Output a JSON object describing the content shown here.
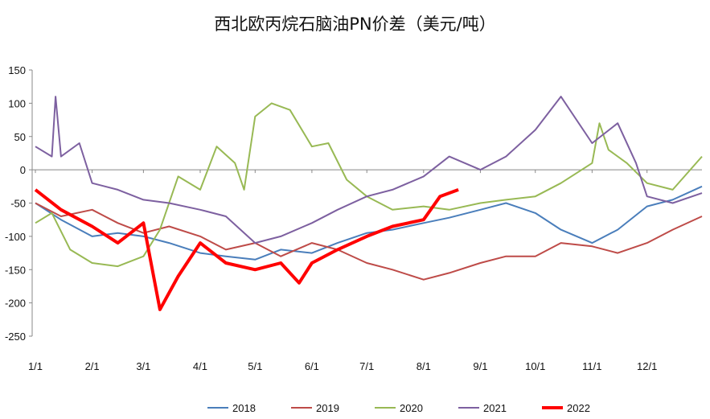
{
  "chart_data": {
    "type": "line",
    "title": "西北欧丙烷石脑油PN价差（美元/吨）",
    "xlabel": "",
    "ylabel": "",
    "ylim": [
      -250,
      150
    ],
    "yticks": [
      150,
      100,
      50,
      0,
      -50,
      -100,
      -150,
      -200,
      -250
    ],
    "xticks": [
      "1/1",
      "2/1",
      "3/1",
      "4/1",
      "5/1",
      "6/1",
      "7/1",
      "8/1",
      "9/1",
      "10/1",
      "11/1",
      "12/1"
    ],
    "grid": false,
    "legend": "bottom",
    "series": [
      {
        "name": "2018",
        "color": "#4a7ebb",
        "width": 2,
        "points": [
          [
            "01-01",
            -50
          ],
          [
            "01-15",
            -75
          ],
          [
            "02-01",
            -100
          ],
          [
            "02-15",
            -95
          ],
          [
            "03-01",
            -100
          ],
          [
            "03-15",
            -110
          ],
          [
            "04-01",
            -125
          ],
          [
            "04-15",
            -130
          ],
          [
            "05-01",
            -135
          ],
          [
            "05-15",
            -120
          ],
          [
            "06-01",
            -125
          ],
          [
            "06-15",
            -110
          ],
          [
            "07-01",
            -95
          ],
          [
            "07-15",
            -90
          ],
          [
            "08-01",
            -80
          ],
          [
            "08-15",
            -72
          ],
          [
            "09-01",
            -60
          ],
          [
            "09-15",
            -50
          ],
          [
            "10-01",
            -65
          ],
          [
            "10-15",
            -90
          ],
          [
            "11-01",
            -110
          ],
          [
            "11-15",
            -90
          ],
          [
            "12-01",
            -55
          ],
          [
            "12-15",
            -45
          ],
          [
            "12-31",
            -25
          ]
        ]
      },
      {
        "name": "2019",
        "color": "#be4b48",
        "width": 2,
        "points": [
          [
            "01-01",
            -50
          ],
          [
            "01-15",
            -70
          ],
          [
            "02-01",
            -60
          ],
          [
            "02-15",
            -80
          ],
          [
            "03-01",
            -95
          ],
          [
            "03-15",
            -85
          ],
          [
            "04-01",
            -100
          ],
          [
            "04-15",
            -120
          ],
          [
            "05-01",
            -110
          ],
          [
            "05-15",
            -130
          ],
          [
            "06-01",
            -110
          ],
          [
            "06-15",
            -120
          ],
          [
            "07-01",
            -140
          ],
          [
            "07-15",
            -150
          ],
          [
            "08-01",
            -165
          ],
          [
            "08-15",
            -155
          ],
          [
            "09-01",
            -140
          ],
          [
            "09-15",
            -130
          ],
          [
            "10-01",
            -130
          ],
          [
            "10-15",
            -110
          ],
          [
            "11-01",
            -115
          ],
          [
            "11-15",
            -125
          ],
          [
            "12-01",
            -110
          ],
          [
            "12-15",
            -90
          ],
          [
            "12-31",
            -70
          ]
        ]
      },
      {
        "name": "2020",
        "color": "#98b954",
        "width": 2,
        "points": [
          [
            "01-01",
            -80
          ],
          [
            "01-10",
            -65
          ],
          [
            "01-20",
            -120
          ],
          [
            "02-01",
            -140
          ],
          [
            "02-15",
            -145
          ],
          [
            "03-01",
            -130
          ],
          [
            "03-10",
            -90
          ],
          [
            "03-20",
            -10
          ],
          [
            "04-01",
            -30
          ],
          [
            "04-10",
            35
          ],
          [
            "04-20",
            10
          ],
          [
            "04-25",
            -30
          ],
          [
            "05-01",
            80
          ],
          [
            "05-10",
            100
          ],
          [
            "05-20",
            90
          ],
          [
            "06-01",
            35
          ],
          [
            "06-10",
            40
          ],
          [
            "06-20",
            -15
          ],
          [
            "07-01",
            -40
          ],
          [
            "07-15",
            -60
          ],
          [
            "08-01",
            -55
          ],
          [
            "08-15",
            -60
          ],
          [
            "09-01",
            -50
          ],
          [
            "09-15",
            -45
          ],
          [
            "10-01",
            -40
          ],
          [
            "10-15",
            -20
          ],
          [
            "11-01",
            10
          ],
          [
            "11-05",
            70
          ],
          [
            "11-10",
            30
          ],
          [
            "11-20",
            10
          ],
          [
            "12-01",
            -20
          ],
          [
            "12-15",
            -30
          ],
          [
            "12-31",
            20
          ]
        ]
      },
      {
        "name": "2021",
        "color": "#7d60a0",
        "width": 2,
        "points": [
          [
            "01-01",
            35
          ],
          [
            "01-10",
            20
          ],
          [
            "01-12",
            110
          ],
          [
            "01-15",
            20
          ],
          [
            "01-25",
            40
          ],
          [
            "02-01",
            -20
          ],
          [
            "02-15",
            -30
          ],
          [
            "03-01",
            -45
          ],
          [
            "03-15",
            -50
          ],
          [
            "04-01",
            -60
          ],
          [
            "04-15",
            -70
          ],
          [
            "05-01",
            -110
          ],
          [
            "05-15",
            -100
          ],
          [
            "06-01",
            -80
          ],
          [
            "06-15",
            -60
          ],
          [
            "07-01",
            -40
          ],
          [
            "07-15",
            -30
          ],
          [
            "08-01",
            -10
          ],
          [
            "08-15",
            20
          ],
          [
            "09-01",
            0
          ],
          [
            "09-15",
            20
          ],
          [
            "10-01",
            60
          ],
          [
            "10-15",
            110
          ],
          [
            "11-01",
            40
          ],
          [
            "11-15",
            70
          ],
          [
            "11-25",
            10
          ],
          [
            "12-01",
            -40
          ],
          [
            "12-15",
            -50
          ],
          [
            "12-31",
            -35
          ]
        ]
      },
      {
        "name": "2022",
        "color": "#ff0000",
        "width": 4,
        "points": [
          [
            "01-01",
            -30
          ],
          [
            "01-15",
            -60
          ],
          [
            "02-01",
            -85
          ],
          [
            "02-15",
            -110
          ],
          [
            "03-01",
            -80
          ],
          [
            "03-10",
            -210
          ],
          [
            "03-20",
            -160
          ],
          [
            "04-01",
            -110
          ],
          [
            "04-15",
            -140
          ],
          [
            "05-01",
            -150
          ],
          [
            "05-15",
            -140
          ],
          [
            "05-25",
            -170
          ],
          [
            "06-01",
            -140
          ],
          [
            "06-15",
            -120
          ],
          [
            "07-01",
            -100
          ],
          [
            "07-15",
            -85
          ],
          [
            "08-01",
            -75
          ],
          [
            "08-10",
            -40
          ],
          [
            "08-20",
            -30
          ]
        ]
      }
    ]
  }
}
